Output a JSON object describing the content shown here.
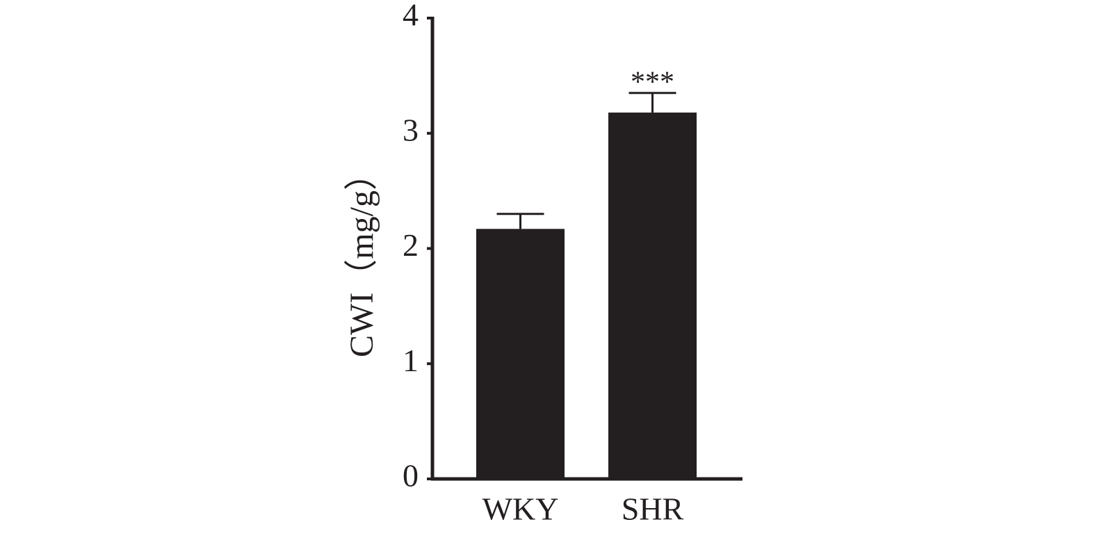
{
  "chart_data": {
    "type": "bar",
    "ylabel": "CWI（mg/g）",
    "categories": [
      "WKY",
      "SHR"
    ],
    "values": [
      2.17,
      3.18
    ],
    "errors": [
      0.13,
      0.17
    ],
    "value_annotations": [
      null,
      "***"
    ],
    "color": "#231f20",
    "ylim": [
      0,
      4
    ],
    "yticks": [
      0,
      1,
      2,
      3,
      4
    ],
    "grid": false
  }
}
